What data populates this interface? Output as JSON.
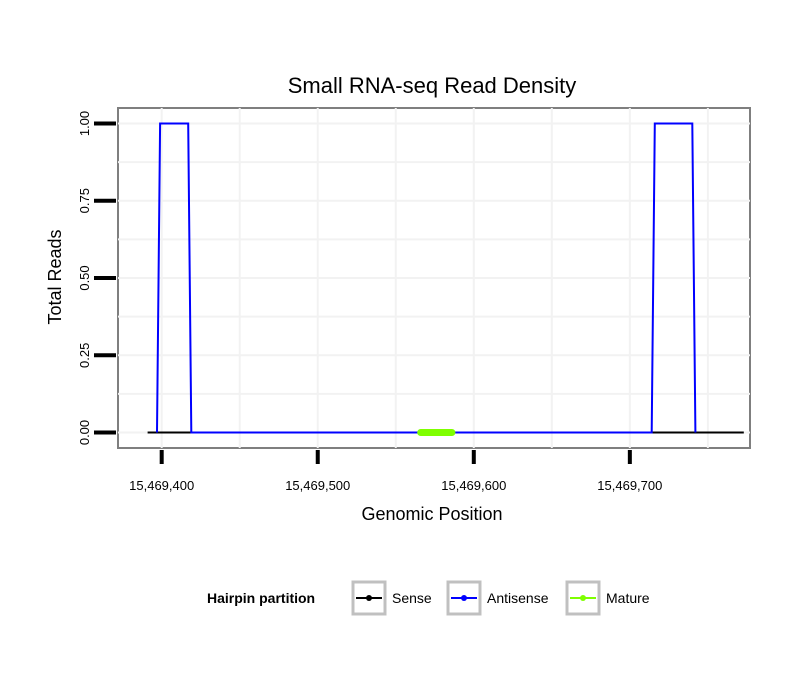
{
  "chart_data": {
    "type": "line",
    "title": "Small RNA-seq Read Density",
    "xlabel": "Genomic Position",
    "ylabel": "Total Reads",
    "xlim": [
      15469372,
      15469777
    ],
    "ylim": [
      -0.05,
      1.05
    ],
    "x_ticks": [
      {
        "value": 15469400,
        "label": "15,469,400"
      },
      {
        "value": 15469500,
        "label": "15,469,500"
      },
      {
        "value": 15469600,
        "label": "15,469,600"
      },
      {
        "value": 15469700,
        "label": "15,469,700"
      }
    ],
    "y_ticks": [
      {
        "value": 0,
        "label": "0.00"
      },
      {
        "value": 0.25,
        "label": "0.25"
      },
      {
        "value": 0.5,
        "label": "0.50"
      },
      {
        "value": 0.75,
        "label": "0.75"
      },
      {
        "value": 1,
        "label": "1.00"
      }
    ],
    "grid": true,
    "legend": {
      "title": "Hairpin partition",
      "position": "bottom"
    },
    "series": [
      {
        "name": "Sense",
        "color": "#000000",
        "x": [
          15469391,
          15469773
        ],
        "y": [
          0,
          0
        ]
      },
      {
        "name": "Antisense",
        "color": "#0000ff",
        "x": [
          15469397,
          15469399,
          15469417,
          15469419,
          15469714,
          15469716,
          15469740,
          15469742
        ],
        "y": [
          0,
          1,
          1,
          0,
          0,
          1,
          1,
          0
        ]
      },
      {
        "name": "Mature",
        "color": "#7fff00",
        "x": [
          15469566,
          15469586
        ],
        "y": [
          0,
          0
        ]
      }
    ]
  }
}
